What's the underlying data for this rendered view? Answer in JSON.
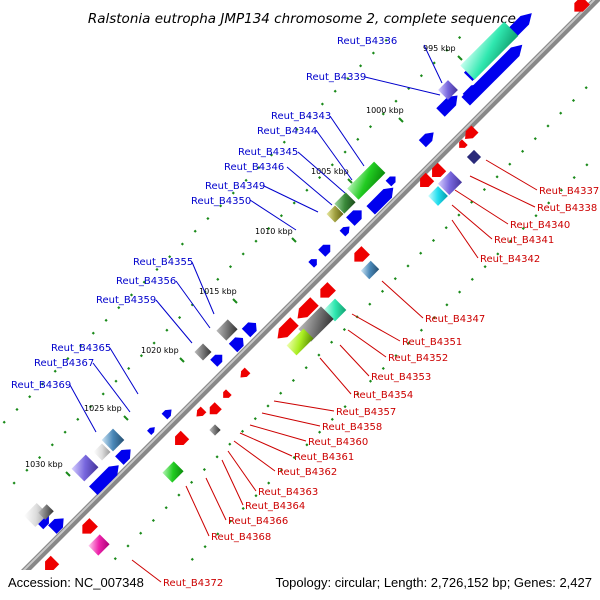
{
  "title": "Ralstonia eutropha JMP134 chromosome 2, complete sequence",
  "footer": {
    "accession": "Accession: NC_007348",
    "stats": "Topology: circular; Length: 2,726,152 bp; Genes: 2,427"
  },
  "kbp_labels": [
    "995 kbp",
    "1000 kbp",
    "1005 kbp",
    "1010 kbp",
    "1015 kbp",
    "1020 kbp",
    "1025 kbp",
    "1030 kbp"
  ],
  "genes_left": [
    "Reut_B4336",
    "Reut_B4339",
    "Reut_B4343",
    "Reut_B4344",
    "Reut_B4345",
    "Reut_B4346",
    "Reut_B4349",
    "Reut_B4350",
    "Reut_B4355",
    "Reut_B4356",
    "Reut_B4359",
    "Reut_B4365",
    "Reut_B4367",
    "Reut_B4369"
  ],
  "genes_right": [
    "Reut_B4337",
    "Reut_B4338",
    "Reut_B4340",
    "Reut_B4341",
    "Reut_B4342",
    "Reut_B4347",
    "Reut_B4351",
    "Reut_B4352",
    "Reut_B4353",
    "Reut_B4354",
    "Reut_B4357",
    "Reut_B4358",
    "Reut_B4360",
    "Reut_B4361",
    "Reut_B4362",
    "Reut_B4363",
    "Reut_B4364",
    "Reut_B4366",
    "Reut_B4368",
    "Reut_B4372"
  ],
  "colors": {
    "forward_label": "#0000cc",
    "reverse_label": "#cc0000",
    "backbone": "#888888",
    "forward_gene": "#0000ee",
    "reverse_gene": "#ee0000",
    "tick": "#1a8a1a"
  }
}
